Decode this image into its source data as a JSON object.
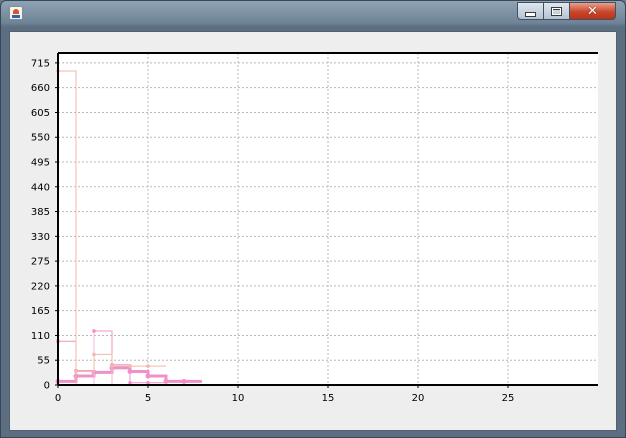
{
  "window": {
    "title": "",
    "controls": {
      "minimize_icon": "minimize-icon",
      "maximize_icon": "maximize-icon",
      "close_icon": "close-icon"
    }
  },
  "colors": {
    "series": "#f090c8",
    "series_light": "#f5b9dc",
    "salmon": "#f2b8a8",
    "grid": "#b8b8b8",
    "axis": "#000000",
    "plot_bg": "#ffffff"
  },
  "chart_data": {
    "type": "line",
    "title": "",
    "xlabel": "",
    "ylabel": "",
    "grid": true,
    "xlim": [
      0,
      30
    ],
    "ylim": [
      0,
      737
    ],
    "x_ticks": [
      0,
      5,
      10,
      15,
      20,
      25
    ],
    "y_ticks": [
      0,
      55,
      110,
      165,
      220,
      275,
      330,
      385,
      440,
      495,
      550,
      605,
      660,
      715
    ],
    "series": [
      {
        "style": "step-bold",
        "x": [
          0,
          1,
          2,
          3,
          4,
          5,
          6,
          7
        ],
        "y": [
          8,
          20,
          28,
          38,
          30,
          20,
          8,
          8
        ]
      },
      {
        "style": "step-thin",
        "x": [
          0,
          1,
          2,
          3,
          4,
          5
        ],
        "y": [
          97,
          32,
          120,
          45,
          5,
          5
        ]
      },
      {
        "style": "step-faint",
        "x": [
          0,
          1,
          2,
          3,
          4,
          5
        ],
        "y": [
          697,
          30,
          68,
          42,
          42,
          42
        ]
      }
    ]
  }
}
